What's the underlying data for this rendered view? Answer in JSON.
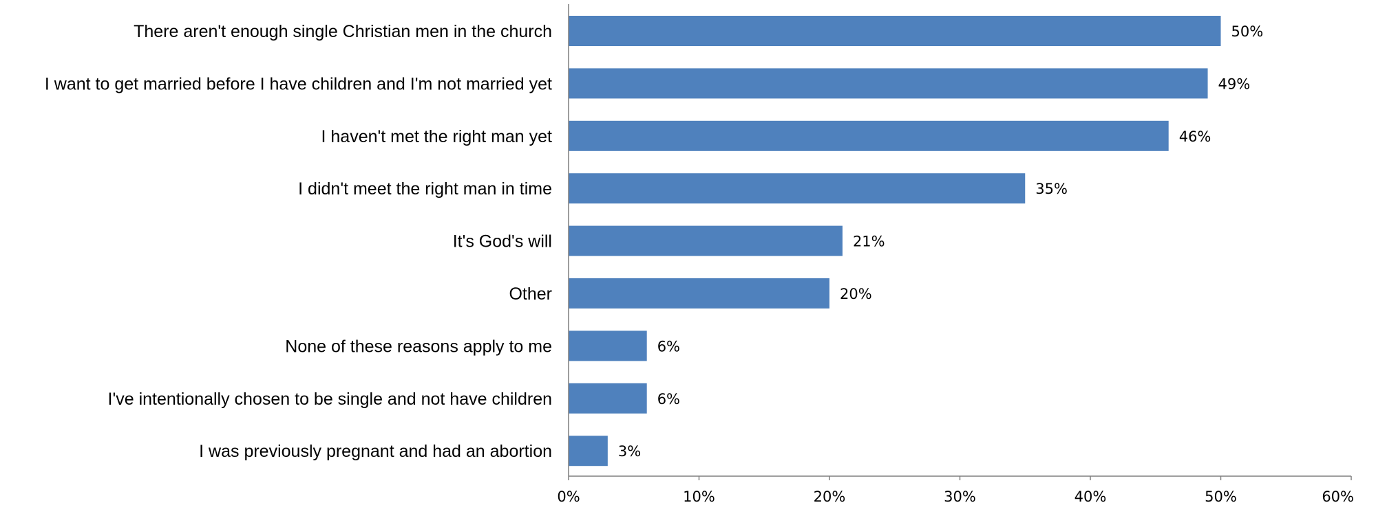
{
  "chart_data": {
    "type": "bar",
    "orientation": "horizontal",
    "categories": [
      "There aren't enough single Christian men in the church",
      "I want to get married before I have children and I'm not married yet",
      "I haven't met the right man yet",
      "I didn't meet the right man in time",
      "It's God's will",
      "Other",
      "None of these reasons apply to me",
      "I've intentionally chosen to be single and not have children",
      "I was previously pregnant and had an abortion"
    ],
    "values": [
      50,
      49,
      46,
      35,
      21,
      20,
      6,
      6,
      3
    ],
    "value_labels": [
      "50%",
      "49%",
      "46%",
      "35%",
      "21%",
      "20%",
      "6%",
      "6%",
      "3%"
    ],
    "x_ticks": [
      "0%",
      "10%",
      "20%",
      "30%",
      "40%",
      "50%",
      "60%"
    ],
    "xlim": [
      0,
      60
    ],
    "bar_color": "#4f81bd",
    "grid": false,
    "legend": "none",
    "title": "",
    "xlabel": "",
    "ylabel": ""
  }
}
